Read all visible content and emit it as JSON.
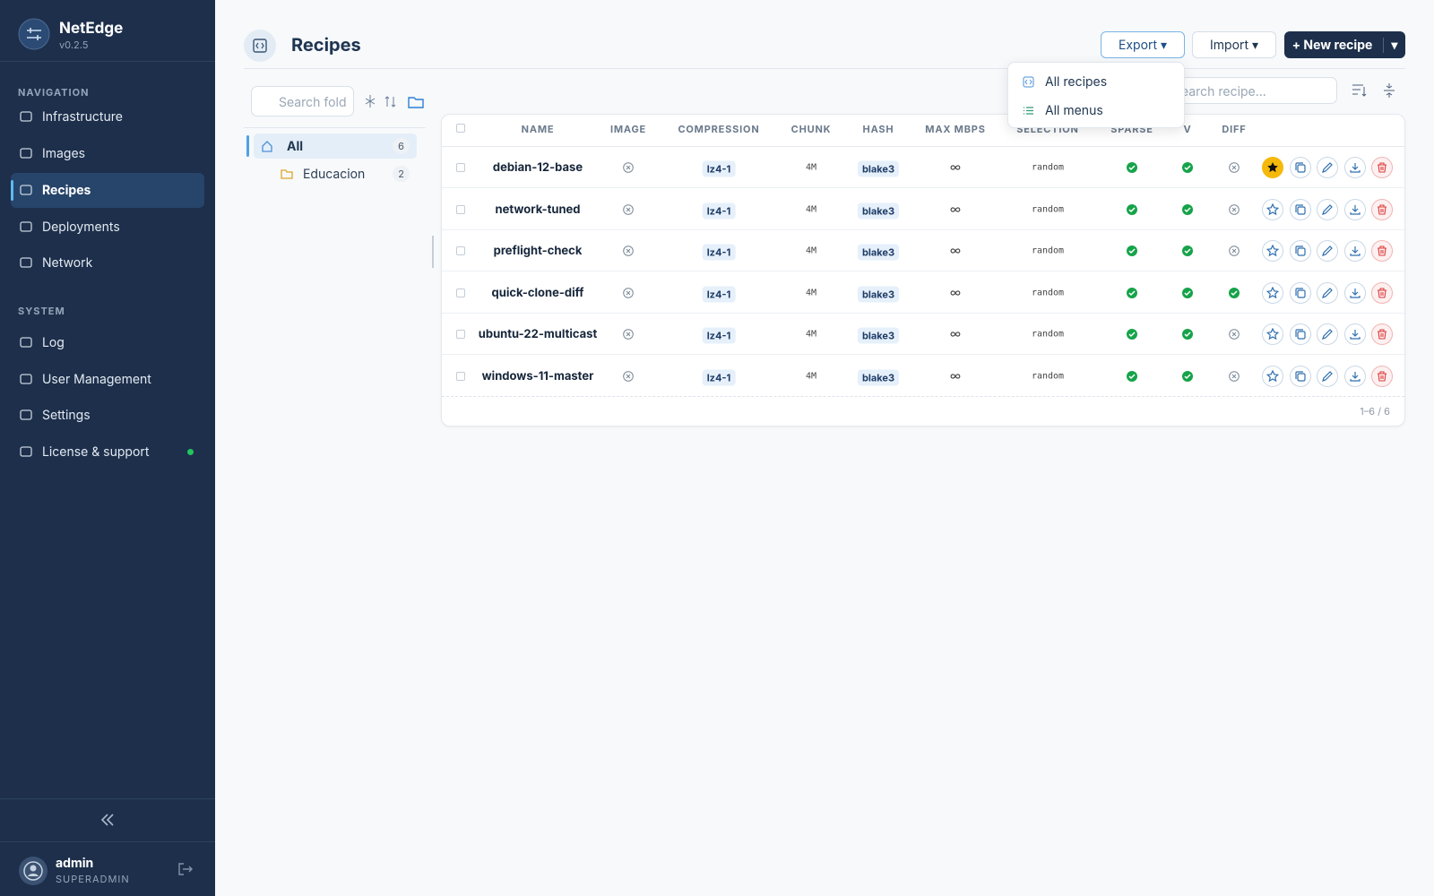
{
  "app": {
    "name": "NetEdge",
    "version": "v0.2.5"
  },
  "sidebar": {
    "sections": [
      {
        "title": "NAVIGATION",
        "items": [
          {
            "label": "Infrastructure",
            "active": false
          },
          {
            "label": "Images",
            "active": false
          },
          {
            "label": "Recipes",
            "active": true
          },
          {
            "label": "Deployments",
            "active": false
          },
          {
            "label": "Network",
            "active": false
          }
        ]
      },
      {
        "title": "SYSTEM",
        "items": [
          {
            "label": "Log",
            "active": false
          },
          {
            "label": "User Management",
            "active": false
          },
          {
            "label": "Settings",
            "active": false
          },
          {
            "label": "License & support",
            "active": false,
            "status_dot": true
          }
        ]
      }
    ]
  },
  "user": {
    "name": "admin",
    "role": "SUPERADMIN"
  },
  "header": {
    "title": "Recipes",
    "buttons": {
      "export": "Export",
      "import": "Import",
      "new": "New recipe"
    }
  },
  "export_menu": [
    "All recipes",
    "All menus"
  ],
  "folders": {
    "search_placeholder": "Search fold",
    "items": [
      {
        "name": "All",
        "count": 6,
        "active": true
      },
      {
        "name": "Educacion",
        "count": 2,
        "active": false
      }
    ]
  },
  "table": {
    "search_placeholder": "Search recipe...",
    "columns": [
      "NAME",
      "IMAGE",
      "COMPRESSION",
      "CHUNK",
      "HASH",
      "MAX MBPS",
      "SELECTION",
      "SPARSE",
      "V",
      "DIFF"
    ],
    "rows": [
      {
        "name": "debian-12-base",
        "image": false,
        "compression": "lz4-1",
        "chunk": "4M",
        "hash": "blake3",
        "max_mbps": "∞",
        "selection": "random",
        "sparse": true,
        "v": true,
        "diff": false,
        "favorite": true
      },
      {
        "name": "network-tuned",
        "image": false,
        "compression": "lz4-1",
        "chunk": "4M",
        "hash": "blake3",
        "max_mbps": "∞",
        "selection": "random",
        "sparse": true,
        "v": true,
        "diff": false,
        "favorite": false
      },
      {
        "name": "preflight-check",
        "image": false,
        "compression": "lz4-1",
        "chunk": "4M",
        "hash": "blake3",
        "max_mbps": "∞",
        "selection": "random",
        "sparse": true,
        "v": true,
        "diff": false,
        "favorite": false
      },
      {
        "name": "quick-clone-diff",
        "image": false,
        "compression": "lz4-1",
        "chunk": "4M",
        "hash": "blake3",
        "max_mbps": "∞",
        "selection": "random",
        "sparse": true,
        "v": true,
        "diff": true,
        "favorite": false
      },
      {
        "name": "ubuntu-22-multicast",
        "image": false,
        "compression": "lz4-1",
        "chunk": "4M",
        "hash": "blake3",
        "max_mbps": "∞",
        "selection": "random",
        "sparse": true,
        "v": true,
        "diff": false,
        "favorite": false
      },
      {
        "name": "windows-11-master",
        "image": false,
        "compression": "lz4-1",
        "chunk": "4M",
        "hash": "blake3",
        "max_mbps": "∞",
        "selection": "random",
        "sparse": true,
        "v": true,
        "diff": false,
        "favorite": false
      }
    ],
    "pagination": "1–6 / 6"
  }
}
